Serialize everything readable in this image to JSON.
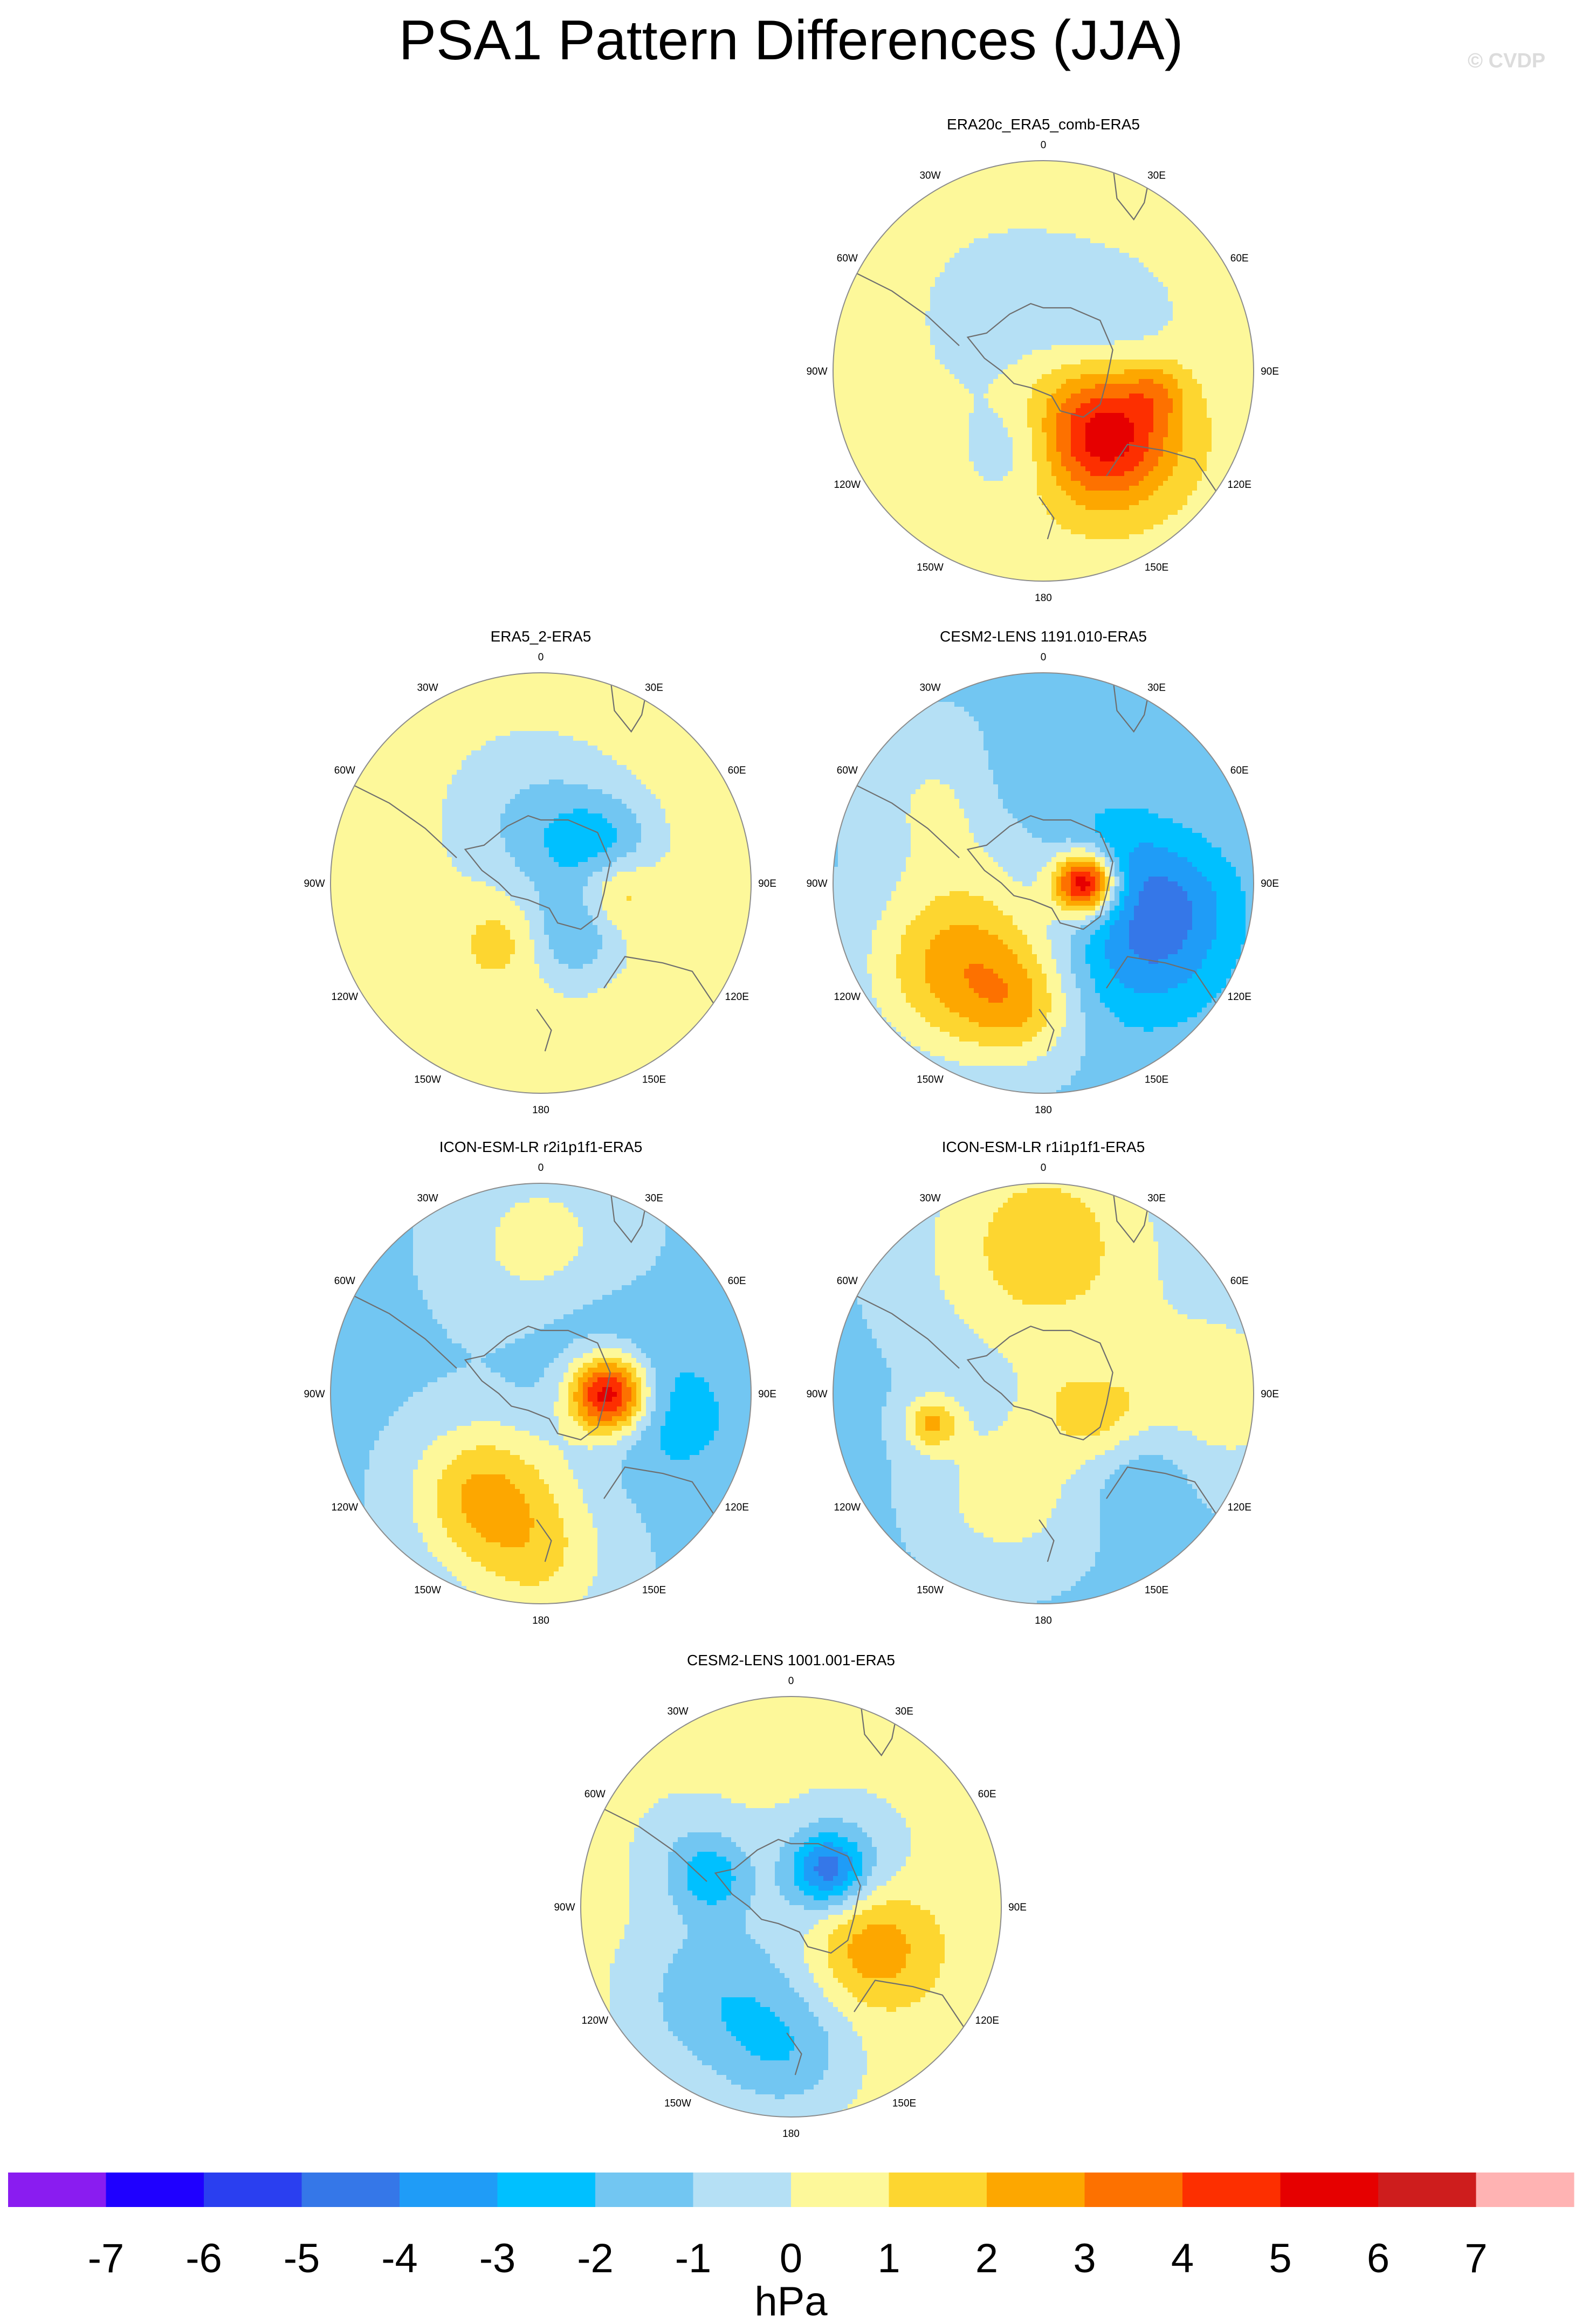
{
  "title": "PSA1 Pattern Differences (JJA)",
  "watermark": "© CVDP",
  "colors": {
    "land_outline": "#6e6e6e",
    "frame": "#8c8c8c",
    "levels": [
      "#8a1cf0",
      "#1f00ff",
      "#2a3ff0",
      "#3577e8",
      "#1f9cf7",
      "#00c0ff",
      "#72c6f2",
      "#b5e0f5",
      "#fdf89a",
      "#fdd630",
      "#fda700",
      "#fd7100",
      "#fd2f00",
      "#e60000",
      "#ce1d1d",
      "#ffb3b3"
    ]
  },
  "chart_data": {
    "type": "heatmap",
    "projection": "south-polar-stereographic",
    "variable": "PSA1 pattern difference",
    "season": "JJA",
    "longitude_labels": [
      "0",
      "30E",
      "60E",
      "90E",
      "120E",
      "150E",
      "180",
      "150W",
      "120W",
      "90W",
      "60W",
      "30W"
    ],
    "colorbar": {
      "label": "hPa",
      "levels": [
        -7,
        -6,
        -5,
        -4,
        -3,
        -2,
        -1,
        0,
        1,
        2,
        3,
        4,
        5,
        6,
        7
      ],
      "tick_labels": [
        "-7",
        "-6",
        "-5",
        "-4",
        "-3",
        "-2",
        "-1",
        "0",
        "1",
        "2",
        "3",
        "4",
        "5",
        "6",
        "7"
      ]
    },
    "panels": [
      {
        "title": "ERA20c_ERA5_comb-ERA5",
        "row": 1,
        "col": 2,
        "background_value": 0.5,
        "anomalies": [
          {
            "lon": 135,
            "colat": 0.42,
            "amp": 5.4,
            "width": 0.23
          },
          {
            "lon": 100,
            "colat": 0.55,
            "amp": 1.4,
            "width": 0.1
          },
          {
            "lon": 330,
            "colat": 0.28,
            "amp": -1.5,
            "width": 0.28
          },
          {
            "lon": 60,
            "colat": 0.35,
            "amp": -1.3,
            "width": 0.25
          },
          {
            "lon": 200,
            "colat": 0.4,
            "amp": -1.2,
            "width": 0.17
          },
          {
            "lon": 0,
            "colat": 0.05,
            "amp": 0.8,
            "width": 0.2
          }
        ]
      },
      {
        "title": "ERA5_2-ERA5",
        "row": 2,
        "col": 1,
        "background_value": 0.5,
        "anomalies": [
          {
            "lon": 62,
            "colat": 0.35,
            "amp": -2.2,
            "width": 0.17
          },
          {
            "lon": 150,
            "colat": 0.28,
            "amp": -2.4,
            "width": 0.17
          },
          {
            "lon": 95,
            "colat": 0.35,
            "amp": 2.2,
            "width": 0.13
          },
          {
            "lon": 350,
            "colat": 0.3,
            "amp": -1.3,
            "width": 0.3
          },
          {
            "lon": 20,
            "colat": 0.25,
            "amp": -0.8,
            "width": 0.2
          },
          {
            "lon": 210,
            "colat": 0.3,
            "amp": 1.4,
            "width": 0.15
          }
        ]
      },
      {
        "title": "CESM2-LENS 1191.010-ERA5",
        "row": 2,
        "col": 2,
        "background_value": -1.2,
        "anomalies": [
          {
            "lon": 90,
            "colat": 0.2,
            "amp": 7.2,
            "width": 0.1
          },
          {
            "lon": 95,
            "colat": 0.22,
            "amp": 1.2,
            "width": 0.2
          },
          {
            "lon": 120,
            "colat": 0.55,
            "amp": -2.8,
            "width": 0.27
          },
          {
            "lon": 95,
            "colat": 0.65,
            "amp": -1.2,
            "width": 0.2
          },
          {
            "lon": 225,
            "colat": 0.55,
            "amp": 3.8,
            "width": 0.29
          },
          {
            "lon": 190,
            "colat": 0.6,
            "amp": 2.0,
            "width": 0.18
          },
          {
            "lon": 310,
            "colat": 0.6,
            "amp": 1.5,
            "width": 0.25
          },
          {
            "lon": 75,
            "colat": 0.35,
            "amp": -1.0,
            "width": 0.2
          },
          {
            "lon": 340,
            "colat": 0.5,
            "amp": -0.8,
            "width": 0.2
          },
          {
            "lon": 60,
            "colat": 0.35,
            "amp": -0.6,
            "width": 0.18
          }
        ]
      },
      {
        "title": "ICON-ESM-LR r2i1p1f1-ERA5",
        "row": 3,
        "col": 1,
        "background_value": -1.2,
        "anomalies": [
          {
            "lon": 90,
            "colat": 0.32,
            "amp": 7.0,
            "width": 0.13
          },
          {
            "lon": 95,
            "colat": 0.35,
            "amp": 1.4,
            "width": 0.25
          },
          {
            "lon": 100,
            "colat": 0.6,
            "amp": -1.8,
            "width": 0.22
          },
          {
            "lon": 60,
            "colat": 0.3,
            "amp": -1.5,
            "width": 0.25
          },
          {
            "lon": 210,
            "colat": 0.55,
            "amp": 3.2,
            "width": 0.24
          },
          {
            "lon": 0,
            "colat": 0.7,
            "amp": 1.6,
            "width": 0.3
          },
          {
            "lon": 180,
            "colat": 0.8,
            "amp": 2.0,
            "width": 0.25
          }
        ]
      },
      {
        "title": "ICON-ESM-LR r1i1p1f1-ERA5",
        "row": 3,
        "col": 2,
        "background_value": -1.2,
        "anomalies": [
          {
            "lon": 0,
            "colat": 0.7,
            "amp": 2.8,
            "width": 0.4
          },
          {
            "lon": 90,
            "colat": 0.85,
            "amp": 1.8,
            "width": 0.3
          },
          {
            "lon": 105,
            "colat": 0.25,
            "amp": 2.4,
            "width": 0.18
          },
          {
            "lon": 255,
            "colat": 0.55,
            "amp": 3.0,
            "width": 0.09
          },
          {
            "lon": 60,
            "colat": 0.3,
            "amp": -0.9,
            "width": 0.12
          },
          {
            "lon": 130,
            "colat": 0.6,
            "amp": -1.0,
            "width": 0.18
          },
          {
            "lon": 200,
            "colat": 0.5,
            "amp": 1.8,
            "width": 0.26
          }
        ]
      },
      {
        "title": "CESM2-LENS 1001.001-ERA5",
        "row": 4,
        "col": 1.5,
        "background_value": 0.5,
        "anomalies": [
          {
            "lon": 45,
            "colat": 0.25,
            "amp": -3.6,
            "width": 0.12
          },
          {
            "lon": 52,
            "colat": 0.3,
            "amp": -1.6,
            "width": 0.25
          },
          {
            "lon": 115,
            "colat": 0.42,
            "amp": 2.6,
            "width": 0.2
          },
          {
            "lon": 220,
            "colat": 0.55,
            "amp": -2.2,
            "width": 0.3
          },
          {
            "lon": 180,
            "colat": 0.7,
            "amp": -1.8,
            "width": 0.22
          },
          {
            "lon": 290,
            "colat": 0.4,
            "amp": -2.0,
            "width": 0.12
          },
          {
            "lon": 300,
            "colat": 0.55,
            "amp": -1.2,
            "width": 0.2
          }
        ]
      }
    ]
  }
}
